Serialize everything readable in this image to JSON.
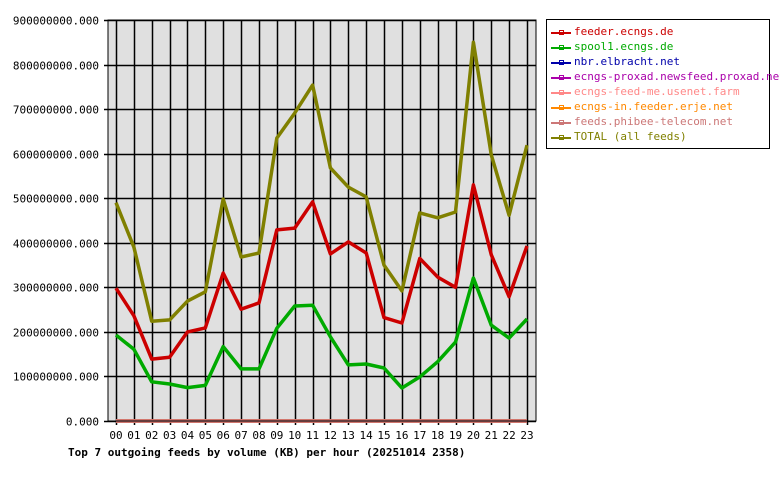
{
  "chart_data": {
    "type": "line",
    "title": "Top 7 outgoing feeds by volume (KB) per hour (20251014 2358)",
    "xlabel": "",
    "ylabel": "",
    "ylim": [
      0,
      900000000
    ],
    "grid": true,
    "legend_position": "right",
    "x": [
      "00",
      "01",
      "02",
      "03",
      "04",
      "05",
      "06",
      "07",
      "08",
      "09",
      "10",
      "11",
      "12",
      "13",
      "14",
      "15",
      "16",
      "17",
      "18",
      "19",
      "20",
      "21",
      "22",
      "23"
    ],
    "yticks": [
      "0.000",
      "100000000.000",
      "200000000.000",
      "300000000.000",
      "400000000.000",
      "500000000.000",
      "600000000.000",
      "700000000.000",
      "800000000.000",
      "900000000.000"
    ],
    "series": [
      {
        "name": "feeder.ecngs.de",
        "color": "#cc0000",
        "values": [
          298000000,
          236000000,
          139000000,
          143000000,
          200000000,
          209000000,
          332000000,
          251000000,
          265000000,
          429000000,
          433000000,
          492000000,
          375000000,
          402000000,
          377000000,
          232000000,
          220000000,
          365000000,
          323000000,
          300000000,
          530000000,
          373000000,
          279000000,
          393000000
        ]
      },
      {
        "name": "spool1.ecngs.de",
        "color": "#00aa00",
        "values": [
          193000000,
          161000000,
          88000000,
          83000000,
          75000000,
          80000000,
          167000000,
          117000000,
          117000000,
          208000000,
          258000000,
          260000000,
          189000000,
          126000000,
          128000000,
          119000000,
          74000000,
          99000000,
          133000000,
          177000000,
          321000000,
          215000000,
          186000000,
          229000000
        ]
      },
      {
        "name": "nbr.elbracht.net",
        "color": "#0000aa",
        "values": [
          0,
          0,
          0,
          0,
          0,
          0,
          0,
          0,
          0,
          0,
          0,
          0,
          0,
          0,
          0,
          0,
          0,
          0,
          0,
          0,
          0,
          0,
          0,
          0
        ]
      },
      {
        "name": "ecngs-proxad.newsfeed.proxad.net",
        "color": "#aa00aa",
        "values": [
          0,
          0,
          0,
          0,
          0,
          0,
          0,
          0,
          0,
          0,
          0,
          0,
          0,
          0,
          0,
          0,
          0,
          0,
          0,
          0,
          0,
          0,
          0,
          0
        ]
      },
      {
        "name": "ecngs-feed-me.usenet.farm",
        "color": "#ff8888",
        "values": [
          0,
          0,
          0,
          0,
          0,
          0,
          0,
          0,
          0,
          0,
          0,
          0,
          0,
          0,
          0,
          0,
          0,
          0,
          0,
          0,
          0,
          0,
          0,
          0
        ]
      },
      {
        "name": "ecngs-in.feeder.erje.net",
        "color": "#ff8800",
        "values": [
          0,
          0,
          0,
          0,
          0,
          0,
          0,
          0,
          0,
          0,
          0,
          0,
          0,
          0,
          0,
          0,
          0,
          0,
          0,
          0,
          0,
          0,
          0,
          0
        ]
      },
      {
        "name": "feeds.phibee-telecom.net",
        "color": "#cc7777",
        "values": [
          0,
          0,
          0,
          0,
          0,
          0,
          0,
          0,
          0,
          0,
          0,
          0,
          0,
          0,
          0,
          0,
          0,
          0,
          0,
          0,
          0,
          0,
          0,
          0
        ]
      },
      {
        "name": "TOTAL (all feeds)",
        "color": "#808000",
        "values": [
          490000000,
          390000000,
          224000000,
          227000000,
          269000000,
          290000000,
          498000000,
          368000000,
          377000000,
          635000000,
          691000000,
          754000000,
          568000000,
          525000000,
          503000000,
          350000000,
          292000000,
          467000000,
          456000000,
          469000000,
          850000000,
          597000000,
          462000000,
          619000000
        ]
      }
    ]
  }
}
